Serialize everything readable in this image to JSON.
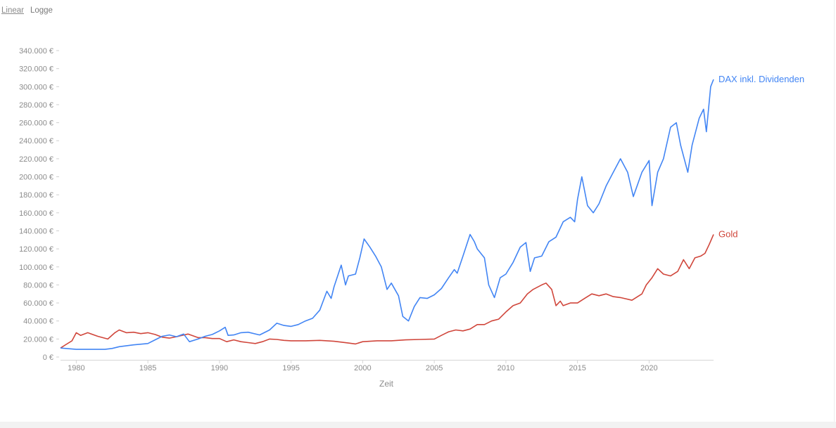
{
  "toggle": {
    "linear_label": "Linear",
    "log_label": "Logge",
    "active": "linear"
  },
  "chart_data": {
    "type": "line",
    "title": "",
    "xlabel": "Zeit",
    "ylabel": "",
    "xlim": [
      1978.9,
      2024.5
    ],
    "ylim": [
      0,
      340000
    ],
    "y_ticks": [
      {
        "value": 0,
        "label": "0 €"
      },
      {
        "value": 20000,
        "label": "20.000 €"
      },
      {
        "value": 40000,
        "label": "40.000 €"
      },
      {
        "value": 60000,
        "label": "60.000 €"
      },
      {
        "value": 80000,
        "label": "80.000 €"
      },
      {
        "value": 100000,
        "label": "100.000 €"
      },
      {
        "value": 120000,
        "label": "120.000 €"
      },
      {
        "value": 140000,
        "label": "140.000 €"
      },
      {
        "value": 160000,
        "label": "160.000 €"
      },
      {
        "value": 180000,
        "label": "180.000 €"
      },
      {
        "value": 200000,
        "label": "200.000 €"
      },
      {
        "value": 220000,
        "label": "220.000 €"
      },
      {
        "value": 240000,
        "label": "240.000 €"
      },
      {
        "value": 260000,
        "label": "260.000 €"
      },
      {
        "value": 280000,
        "label": "280.000 €"
      },
      {
        "value": 300000,
        "label": "300.000 €"
      },
      {
        "value": 320000,
        "label": "320.000 €"
      },
      {
        "value": 340000,
        "label": "340.000 €"
      }
    ],
    "x_ticks": [
      {
        "value": 1980,
        "label": "1980"
      },
      {
        "value": 1985,
        "label": "1985"
      },
      {
        "value": 1990,
        "label": "1990"
      },
      {
        "value": 1995,
        "label": "1995"
      },
      {
        "value": 2000,
        "label": "2000"
      },
      {
        "value": 2005,
        "label": "2005"
      },
      {
        "value": 2010,
        "label": "2010"
      },
      {
        "value": 2015,
        "label": "2015"
      },
      {
        "value": 2020,
        "label": "2020"
      }
    ],
    "grid": false,
    "legend": "end-of-line labels",
    "series": [
      {
        "name": "DAX inkl. Dividenden",
        "color": "#4285f4",
        "points": [
          [
            1978.9,
            10000
          ],
          [
            1980.0,
            8500
          ],
          [
            1981.0,
            8500
          ],
          [
            1982.0,
            8500
          ],
          [
            1982.5,
            9500
          ],
          [
            1983.0,
            11500
          ],
          [
            1984.0,
            13500
          ],
          [
            1985.0,
            15000
          ],
          [
            1985.5,
            19000
          ],
          [
            1986.0,
            23000
          ],
          [
            1986.5,
            24500
          ],
          [
            1987.0,
            22500
          ],
          [
            1987.5,
            25500
          ],
          [
            1987.9,
            17000
          ],
          [
            1988.5,
            20000
          ],
          [
            1989.0,
            23000
          ],
          [
            1989.5,
            25000
          ],
          [
            1990.0,
            29000
          ],
          [
            1990.4,
            33000
          ],
          [
            1990.6,
            24000
          ],
          [
            1991.0,
            24500
          ],
          [
            1991.5,
            27000
          ],
          [
            1992.0,
            27500
          ],
          [
            1992.8,
            24500
          ],
          [
            1993.5,
            30000
          ],
          [
            1994.0,
            37500
          ],
          [
            1994.5,
            35000
          ],
          [
            1995.0,
            34000
          ],
          [
            1995.5,
            36000
          ],
          [
            1996.0,
            40000
          ],
          [
            1996.5,
            43000
          ],
          [
            1997.0,
            52000
          ],
          [
            1997.5,
            73000
          ],
          [
            1997.8,
            65000
          ],
          [
            1998.0,
            78000
          ],
          [
            1998.5,
            102000
          ],
          [
            1998.8,
            80000
          ],
          [
            1999.0,
            90000
          ],
          [
            1999.5,
            92000
          ],
          [
            1999.8,
            110000
          ],
          [
            2000.1,
            131000
          ],
          [
            2000.5,
            122000
          ],
          [
            2000.9,
            112000
          ],
          [
            2001.3,
            100000
          ],
          [
            2001.7,
            75000
          ],
          [
            2002.0,
            82000
          ],
          [
            2002.5,
            68000
          ],
          [
            2002.8,
            45000
          ],
          [
            2003.2,
            40000
          ],
          [
            2003.6,
            56000
          ],
          [
            2004.0,
            66000
          ],
          [
            2004.5,
            65000
          ],
          [
            2005.0,
            69000
          ],
          [
            2005.5,
            76000
          ],
          [
            2006.0,
            88000
          ],
          [
            2006.4,
            97000
          ],
          [
            2006.6,
            93000
          ],
          [
            2007.0,
            112000
          ],
          [
            2007.5,
            136000
          ],
          [
            2007.8,
            128000
          ],
          [
            2008.0,
            120000
          ],
          [
            2008.5,
            110000
          ],
          [
            2008.8,
            80000
          ],
          [
            2009.2,
            66000
          ],
          [
            2009.6,
            88000
          ],
          [
            2010.0,
            92000
          ],
          [
            2010.5,
            105000
          ],
          [
            2011.0,
            122000
          ],
          [
            2011.4,
            127000
          ],
          [
            2011.7,
            95000
          ],
          [
            2012.0,
            110000
          ],
          [
            2012.5,
            112000
          ],
          [
            2013.0,
            128000
          ],
          [
            2013.5,
            133000
          ],
          [
            2014.0,
            150000
          ],
          [
            2014.5,
            155000
          ],
          [
            2014.8,
            150000
          ],
          [
            2015.0,
            175000
          ],
          [
            2015.3,
            200000
          ],
          [
            2015.7,
            168000
          ],
          [
            2016.1,
            160000
          ],
          [
            2016.5,
            170000
          ],
          [
            2017.0,
            190000
          ],
          [
            2017.5,
            205000
          ],
          [
            2018.0,
            220000
          ],
          [
            2018.5,
            205000
          ],
          [
            2018.9,
            178000
          ],
          [
            2019.5,
            205000
          ],
          [
            2020.0,
            218000
          ],
          [
            2020.2,
            168000
          ],
          [
            2020.6,
            205000
          ],
          [
            2021.0,
            220000
          ],
          [
            2021.5,
            255000
          ],
          [
            2021.9,
            260000
          ],
          [
            2022.2,
            235000
          ],
          [
            2022.7,
            205000
          ],
          [
            2023.0,
            235000
          ],
          [
            2023.5,
            265000
          ],
          [
            2023.8,
            275000
          ],
          [
            2024.0,
            250000
          ],
          [
            2024.3,
            300000
          ],
          [
            2024.5,
            308000
          ]
        ]
      },
      {
        "name": "Gold",
        "color": "#d0463b",
        "points": [
          [
            1978.9,
            10000
          ],
          [
            1979.3,
            14000
          ],
          [
            1979.7,
            18000
          ],
          [
            1980.0,
            27000
          ],
          [
            1980.3,
            24000
          ],
          [
            1980.8,
            27000
          ],
          [
            1981.5,
            23000
          ],
          [
            1982.2,
            20000
          ],
          [
            1982.7,
            27000
          ],
          [
            1983.0,
            30000
          ],
          [
            1983.5,
            27000
          ],
          [
            1984.0,
            27500
          ],
          [
            1984.5,
            26000
          ],
          [
            1985.0,
            27000
          ],
          [
            1985.5,
            25000
          ],
          [
            1986.0,
            22000
          ],
          [
            1986.5,
            21000
          ],
          [
            1987.0,
            22500
          ],
          [
            1987.8,
            25500
          ],
          [
            1988.5,
            21500
          ],
          [
            1989.0,
            21500
          ],
          [
            1989.5,
            20500
          ],
          [
            1990.0,
            20500
          ],
          [
            1990.5,
            17000
          ],
          [
            1991.0,
            19000
          ],
          [
            1991.5,
            17000
          ],
          [
            1992.0,
            16000
          ],
          [
            1992.5,
            15000
          ],
          [
            1993.0,
            17000
          ],
          [
            1993.5,
            20000
          ],
          [
            1994.0,
            19500
          ],
          [
            1994.5,
            18500
          ],
          [
            1995.0,
            18000
          ],
          [
            1996.0,
            18000
          ],
          [
            1997.0,
            18500
          ],
          [
            1998.0,
            17500
          ],
          [
            1999.0,
            15500
          ],
          [
            1999.5,
            14500
          ],
          [
            2000.0,
            17000
          ],
          [
            2001.0,
            18000
          ],
          [
            2002.0,
            18000
          ],
          [
            2003.0,
            19000
          ],
          [
            2004.0,
            19500
          ],
          [
            2005.0,
            20000
          ],
          [
            2005.5,
            24000
          ],
          [
            2006.0,
            28000
          ],
          [
            2006.5,
            30000
          ],
          [
            2007.0,
            29000
          ],
          [
            2007.5,
            31000
          ],
          [
            2008.0,
            36000
          ],
          [
            2008.5,
            36000
          ],
          [
            2009.0,
            40000
          ],
          [
            2009.5,
            42000
          ],
          [
            2010.0,
            50000
          ],
          [
            2010.5,
            57000
          ],
          [
            2011.0,
            60000
          ],
          [
            2011.5,
            70000
          ],
          [
            2011.9,
            75000
          ],
          [
            2012.5,
            80000
          ],
          [
            2012.8,
            82000
          ],
          [
            2013.2,
            75000
          ],
          [
            2013.5,
            57000
          ],
          [
            2013.8,
            62000
          ],
          [
            2014.0,
            57000
          ],
          [
            2014.5,
            60000
          ],
          [
            2015.0,
            60000
          ],
          [
            2015.5,
            65000
          ],
          [
            2016.0,
            70000
          ],
          [
            2016.5,
            68000
          ],
          [
            2017.0,
            70000
          ],
          [
            2017.5,
            67000
          ],
          [
            2018.0,
            66000
          ],
          [
            2018.8,
            63000
          ],
          [
            2019.5,
            70000
          ],
          [
            2019.8,
            80000
          ],
          [
            2020.2,
            88000
          ],
          [
            2020.6,
            98000
          ],
          [
            2021.0,
            92000
          ],
          [
            2021.5,
            90000
          ],
          [
            2022.0,
            95000
          ],
          [
            2022.4,
            108000
          ],
          [
            2022.8,
            98000
          ],
          [
            2023.2,
            110000
          ],
          [
            2023.6,
            112000
          ],
          [
            2023.9,
            115000
          ],
          [
            2024.2,
            125000
          ],
          [
            2024.5,
            136000
          ]
        ]
      }
    ]
  }
}
